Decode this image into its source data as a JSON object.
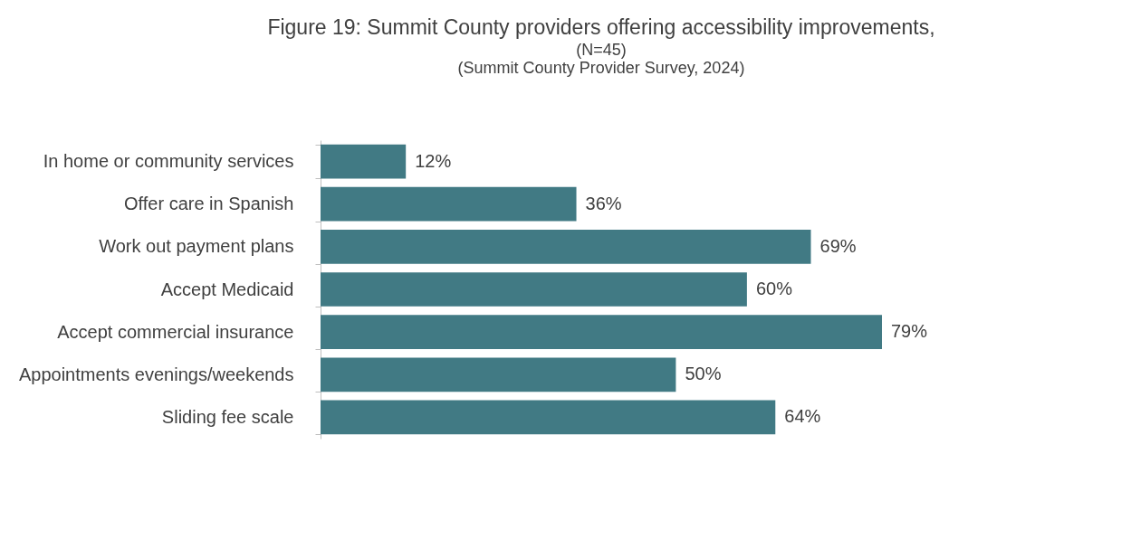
{
  "chart_data": {
    "type": "bar",
    "orientation": "horizontal",
    "title": "Figure 19: Summit County providers offering accessibility improvements,",
    "subtitle": "(N=45)",
    "annotations": [
      "(Summit County Provider Survey, 2024)"
    ],
    "categories": [
      "In home or community services",
      "Offer care in Spanish",
      "Work out payment plans",
      "Accept Medicaid",
      "Accept commercial insurance",
      "Appointments evenings/weekends",
      "Sliding fee scale"
    ],
    "values": [
      12,
      36,
      69,
      60,
      79,
      50,
      64
    ],
    "value_labels": [
      "12%",
      "36%",
      "69%",
      "60%",
      "79%",
      "50%",
      "64%"
    ],
    "color": "#417a84",
    "grid": false
  }
}
